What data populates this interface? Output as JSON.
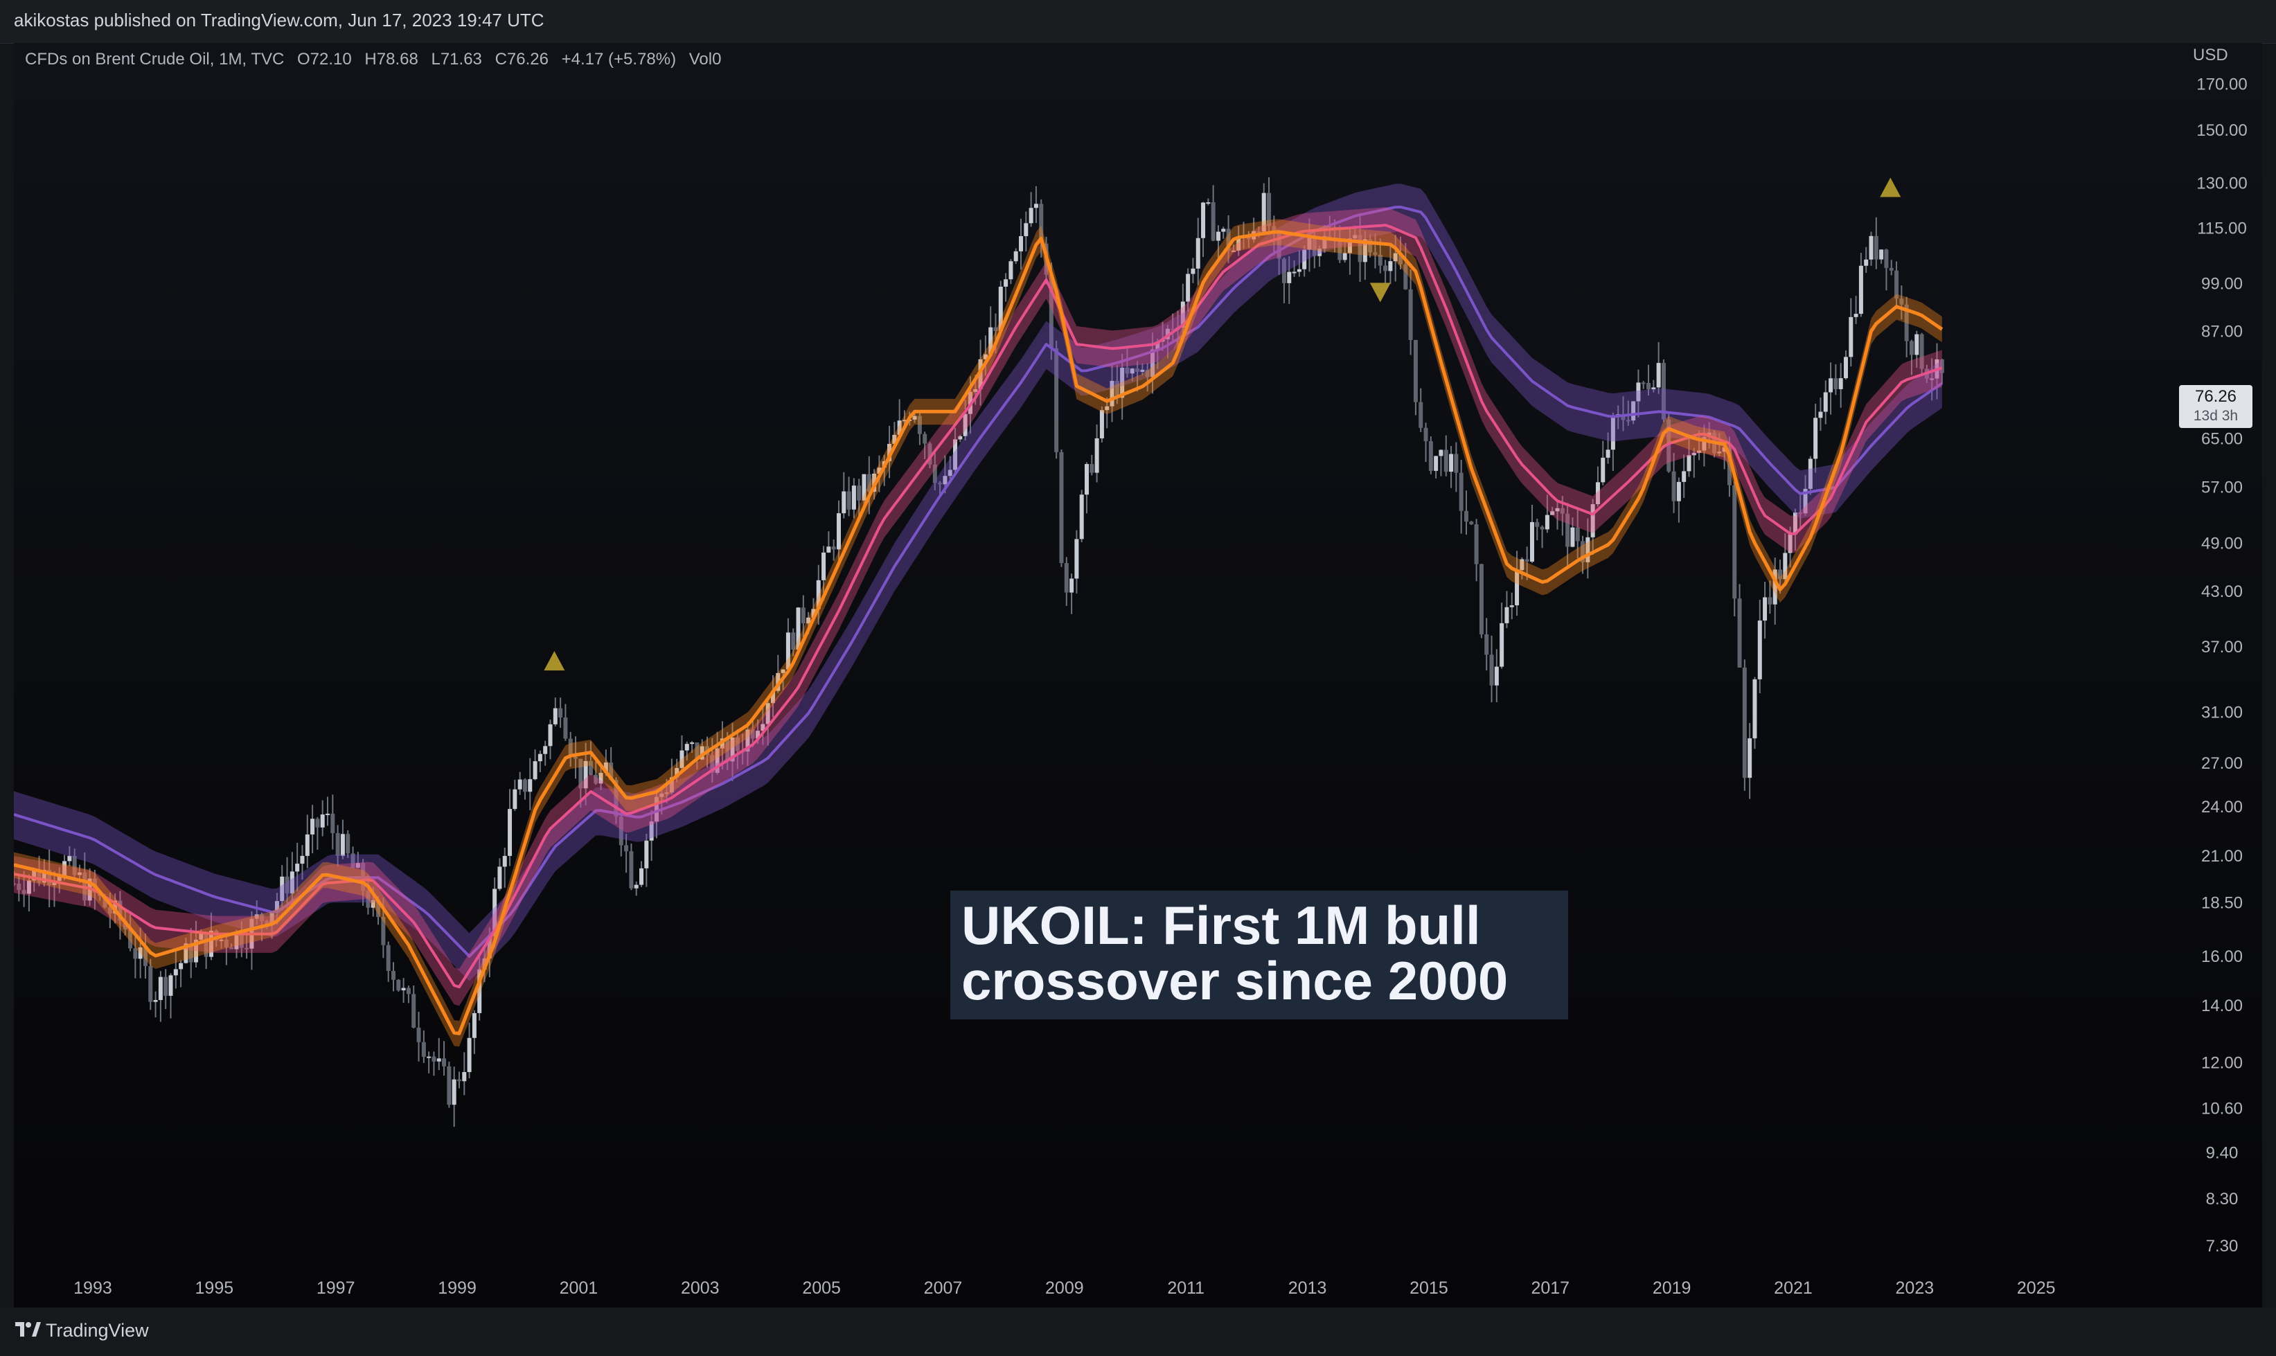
{
  "header": {
    "published": "akikostas published on TradingView.com, Jun 17, 2023 19:47 UTC"
  },
  "legend": {
    "symbol": "CFDs on Brent Crude Oil, 1M, TVC",
    "open": "O72.10",
    "high": "H78.68",
    "low": "L71.63",
    "close": "C76.26",
    "change": "+4.17 (+5.78%)",
    "volume": "Vol0"
  },
  "axis": {
    "currency": "USD"
  },
  "price_tag": {
    "price": "76.26",
    "countdown": "13d 3h"
  },
  "annotation": {
    "line1": "UKOIL: First 1M bull",
    "line2": "crossover since 2000"
  },
  "footer": {
    "brand": "TradingView"
  },
  "colors": {
    "fast_ma": "#f7861e",
    "mid_ma": "#e8528c",
    "slow_ma": "#7b54c7",
    "signal": "#a8912a",
    "candles": "#9aa0ab"
  },
  "chart_data": {
    "type": "line",
    "scale": "log",
    "x_ticks": [
      "1993",
      "1995",
      "1997",
      "1999",
      "2001",
      "2003",
      "2005",
      "2007",
      "2009",
      "2011",
      "2013",
      "2015",
      "2017",
      "2019",
      "2021",
      "2023",
      "2025"
    ],
    "y_ticks": [
      "7.30",
      "8.30",
      "9.40",
      "10.60",
      "12.00",
      "14.00",
      "16.00",
      "18.50",
      "21.00",
      "24.00",
      "27.00",
      "31.00",
      "37.00",
      "43.00",
      "49.00",
      "57.00",
      "65.00",
      "76.26",
      "87.00",
      "99.00",
      "115.00",
      "130.00",
      "150.00",
      "170.00"
    ],
    "ylim": [
      6.8,
      190
    ],
    "xlim": [
      1991.7,
      2026.6
    ],
    "price_close_points": [
      [
        1991.7,
        19.5
      ],
      [
        1992.5,
        20.5
      ],
      [
        1993.5,
        17.5
      ],
      [
        1994.0,
        14.5
      ],
      [
        1994.7,
        16.5
      ],
      [
        1995.5,
        17.0
      ],
      [
        1996.0,
        18.5
      ],
      [
        1996.8,
        23.5
      ],
      [
        1997.5,
        19.0
      ],
      [
        1998.0,
        15.0
      ],
      [
        1998.5,
        12.5
      ],
      [
        1998.9,
        11.0
      ],
      [
        1999.2,
        12.5
      ],
      [
        1999.5,
        17.0
      ],
      [
        1999.9,
        24.0
      ],
      [
        2000.3,
        27.0
      ],
      [
        2000.7,
        32.0
      ],
      [
        2001.0,
        26.0
      ],
      [
        2001.5,
        26.0
      ],
      [
        2001.9,
        19.5
      ],
      [
        2002.3,
        24.5
      ],
      [
        2002.8,
        28.0
      ],
      [
        2003.2,
        27.5
      ],
      [
        2003.6,
        28.0
      ],
      [
        2004.0,
        31.0
      ],
      [
        2004.5,
        38.0
      ],
      [
        2004.9,
        43.0
      ],
      [
        2005.4,
        55.0
      ],
      [
        2005.9,
        58.0
      ],
      [
        2006.5,
        72.0
      ],
      [
        2007.0,
        56.0
      ],
      [
        2007.5,
        74.0
      ],
      [
        2007.9,
        92.0
      ],
      [
        2008.3,
        110.0
      ],
      [
        2008.5,
        132.0
      ],
      [
        2008.7,
        105.0
      ],
      [
        2008.9,
        55.0
      ],
      [
        2009.0,
        42.0
      ],
      [
        2009.4,
        60.0
      ],
      [
        2009.8,
        75.0
      ],
      [
        2010.3,
        78.0
      ],
      [
        2010.9,
        92.0
      ],
      [
        2011.3,
        120.0
      ],
      [
        2011.8,
        108.0
      ],
      [
        2012.3,
        122.0
      ],
      [
        2012.6,
        97.0
      ],
      [
        2013.0,
        112.0
      ],
      [
        2013.6,
        110.0
      ],
      [
        2014.3,
        107.0
      ],
      [
        2014.6,
        100.0
      ],
      [
        2014.9,
        62.0
      ],
      [
        2015.3,
        62.0
      ],
      [
        2015.7,
        50.0
      ],
      [
        2016.0,
        33.0
      ],
      [
        2016.5,
        47.0
      ],
      [
        2017.0,
        55.0
      ],
      [
        2017.5,
        47.0
      ],
      [
        2018.0,
        66.0
      ],
      [
        2018.8,
        80.0
      ],
      [
        2019.0,
        56.0
      ],
      [
        2019.5,
        64.0
      ],
      [
        2019.9,
        66.0
      ],
      [
        2020.2,
        26.0
      ],
      [
        2020.5,
        42.0
      ],
      [
        2020.9,
        47.0
      ],
      [
        2021.3,
        64.0
      ],
      [
        2021.8,
        80.0
      ],
      [
        2022.2,
        108.0
      ],
      [
        2022.5,
        110.0
      ],
      [
        2022.9,
        86.0
      ],
      [
        2023.2,
        79.0
      ],
      [
        2023.46,
        76.26
      ]
    ],
    "series": [
      {
        "name": "",
        "role": "fast",
        "points": [
          [
            1991.7,
            20.5
          ],
          [
            1993.0,
            19.5
          ],
          [
            1994.0,
            16.0
          ],
          [
            1995.0,
            16.8
          ],
          [
            1996.0,
            17.5
          ],
          [
            1996.8,
            20.0
          ],
          [
            1997.5,
            19.5
          ],
          [
            1998.2,
            16.5
          ],
          [
            1999.0,
            12.8
          ],
          [
            1999.6,
            16.5
          ],
          [
            2000.3,
            24.0
          ],
          [
            2000.8,
            27.5
          ],
          [
            2001.2,
            27.8
          ],
          [
            2001.8,
            24.5
          ],
          [
            2002.3,
            25.0
          ],
          [
            2003.0,
            27.5
          ],
          [
            2003.8,
            30.0
          ],
          [
            2004.5,
            35.0
          ],
          [
            2005.2,
            45.0
          ],
          [
            2005.8,
            56.0
          ],
          [
            2006.5,
            70.0
          ],
          [
            2007.2,
            70.0
          ],
          [
            2007.8,
            82.0
          ],
          [
            2008.3,
            100.0
          ],
          [
            2008.6,
            113.0
          ],
          [
            2008.9,
            95.0
          ],
          [
            2009.2,
            75.0
          ],
          [
            2009.7,
            72.0
          ],
          [
            2010.3,
            75.0
          ],
          [
            2010.8,
            80.0
          ],
          [
            2011.3,
            100.0
          ],
          [
            2011.8,
            112.0
          ],
          [
            2012.5,
            114.0
          ],
          [
            2013.2,
            112.0
          ],
          [
            2013.8,
            111.0
          ],
          [
            2014.4,
            110.0
          ],
          [
            2014.8,
            102.0
          ],
          [
            2015.2,
            80.0
          ],
          [
            2015.7,
            60.0
          ],
          [
            2016.3,
            46.0
          ],
          [
            2016.9,
            44.0
          ],
          [
            2017.5,
            47.0
          ],
          [
            2018.0,
            49.0
          ],
          [
            2018.5,
            56.0
          ],
          [
            2018.9,
            67.0
          ],
          [
            2019.4,
            65.0
          ],
          [
            2019.9,
            64.0
          ],
          [
            2020.3,
            50.0
          ],
          [
            2020.8,
            43.0
          ],
          [
            2021.3,
            50.0
          ],
          [
            2021.8,
            63.0
          ],
          [
            2022.3,
            88.0
          ],
          [
            2022.7,
            93.0
          ],
          [
            2023.1,
            91.0
          ],
          [
            2023.5,
            87.0
          ]
        ]
      },
      {
        "name": "",
        "role": "mid",
        "points": [
          [
            1991.7,
            20.0
          ],
          [
            1993.0,
            19.2
          ],
          [
            1994.0,
            17.3
          ],
          [
            1995.0,
            17.0
          ],
          [
            1996.0,
            17.0
          ],
          [
            1996.8,
            19.5
          ],
          [
            1997.6,
            19.7
          ],
          [
            1998.3,
            17.5
          ],
          [
            1999.0,
            14.6
          ],
          [
            1999.8,
            18.0
          ],
          [
            2000.5,
            22.5
          ],
          [
            2001.2,
            25.0
          ],
          [
            2001.8,
            23.5
          ],
          [
            2002.5,
            24.5
          ],
          [
            2003.2,
            26.5
          ],
          [
            2003.9,
            28.5
          ],
          [
            2004.6,
            33.0
          ],
          [
            2005.3,
            41.0
          ],
          [
            2006.0,
            52.0
          ],
          [
            2006.8,
            62.0
          ],
          [
            2007.5,
            72.0
          ],
          [
            2008.2,
            88.0
          ],
          [
            2008.7,
            100.0
          ],
          [
            2009.2,
            84.0
          ],
          [
            2009.8,
            83.0
          ],
          [
            2010.5,
            84.0
          ],
          [
            2011.0,
            89.0
          ],
          [
            2011.6,
            102.0
          ],
          [
            2012.2,
            110.0
          ],
          [
            2012.9,
            114.0
          ],
          [
            2013.6,
            115.0
          ],
          [
            2014.3,
            116.0
          ],
          [
            2014.8,
            112.0
          ],
          [
            2015.3,
            92.0
          ],
          [
            2015.9,
            71.0
          ],
          [
            2016.5,
            61.0
          ],
          [
            2017.1,
            55.0
          ],
          [
            2017.7,
            53.0
          ],
          [
            2018.3,
            58.0
          ],
          [
            2018.9,
            64.0
          ],
          [
            2019.5,
            66.0
          ],
          [
            2020.0,
            64.0
          ],
          [
            2020.5,
            53.0
          ],
          [
            2021.0,
            50.0
          ],
          [
            2021.6,
            55.0
          ],
          [
            2022.2,
            68.0
          ],
          [
            2022.8,
            76.0
          ],
          [
            2023.5,
            79.0
          ]
        ]
      },
      {
        "name": "",
        "role": "slow",
        "points": [
          [
            1991.7,
            23.5
          ],
          [
            1993.0,
            22.0
          ],
          [
            1994.0,
            20.0
          ],
          [
            1995.0,
            18.8
          ],
          [
            1996.0,
            18.0
          ],
          [
            1996.9,
            19.8
          ],
          [
            1997.7,
            19.8
          ],
          [
            1998.5,
            18.0
          ],
          [
            1999.2,
            16.0
          ],
          [
            1999.9,
            18.0
          ],
          [
            2000.6,
            21.5
          ],
          [
            2001.3,
            23.8
          ],
          [
            2002.0,
            23.3
          ],
          [
            2002.7,
            24.3
          ],
          [
            2003.4,
            25.6
          ],
          [
            2004.1,
            27.3
          ],
          [
            2004.8,
            31.0
          ],
          [
            2005.5,
            37.5
          ],
          [
            2006.2,
            46.0
          ],
          [
            2006.9,
            55.0
          ],
          [
            2007.6,
            65.0
          ],
          [
            2008.3,
            76.0
          ],
          [
            2008.7,
            84.0
          ],
          [
            2009.3,
            78.0
          ],
          [
            2009.9,
            80.0
          ],
          [
            2010.6,
            83.0
          ],
          [
            2011.2,
            88.0
          ],
          [
            2011.8,
            98.0
          ],
          [
            2012.4,
            107.0
          ],
          [
            2013.1,
            114.0
          ],
          [
            2013.8,
            119.0
          ],
          [
            2014.5,
            122.0
          ],
          [
            2014.9,
            120.0
          ],
          [
            2015.4,
            104.0
          ],
          [
            2016.0,
            86.0
          ],
          [
            2016.7,
            76.0
          ],
          [
            2017.3,
            71.0
          ],
          [
            2018.0,
            69.0
          ],
          [
            2018.8,
            70.0
          ],
          [
            2019.6,
            69.0
          ],
          [
            2020.1,
            67.0
          ],
          [
            2020.6,
            61.0
          ],
          [
            2021.1,
            56.0
          ],
          [
            2021.7,
            57.0
          ],
          [
            2022.3,
            64.0
          ],
          [
            2022.9,
            71.0
          ],
          [
            2023.5,
            76.0
          ]
        ]
      }
    ],
    "signals": [
      {
        "type": "bull",
        "x": 2000.6,
        "y": 35.5
      },
      {
        "type": "bear",
        "x": 2014.2,
        "y": 97.0
      },
      {
        "type": "bull",
        "x": 2022.6,
        "y": 128.0
      }
    ]
  }
}
